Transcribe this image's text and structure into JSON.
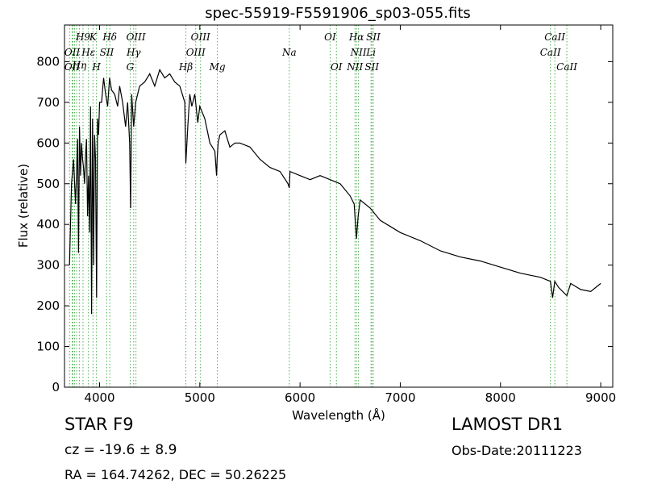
{
  "chart_data": {
    "type": "line",
    "title": "spec-55919-F5591906_sp03-055.fits",
    "xlabel": "Wavelength (Å)",
    "ylabel": "Flux (relative)",
    "xlim": [
      3650,
      9120
    ],
    "ylim": [
      0,
      890
    ],
    "xticks": [
      "4000",
      "5000",
      "6000",
      "7000",
      "8000",
      "9000"
    ],
    "yticks": [
      "0",
      "100",
      "200",
      "300",
      "400",
      "500",
      "600",
      "700",
      "800"
    ],
    "grid": false,
    "series": [
      {
        "color": "#000000",
        "x": [
          3700,
          3720,
          3740,
          3760,
          3780,
          3790,
          3800,
          3810,
          3820,
          3830,
          3840,
          3850,
          3860,
          3870,
          3880,
          3890,
          3900,
          3910,
          3920,
          3930,
          3940,
          3950,
          3960,
          3970,
          3980,
          3990,
          4000,
          4020,
          4040,
          4060,
          4080,
          4100,
          4120,
          4150,
          4180,
          4200,
          4230,
          4260,
          4280,
          4300,
          4310,
          4320,
          4340,
          4360,
          4380,
          4400,
          4450,
          4500,
          4550,
          4600,
          4650,
          4700,
          4750,
          4800,
          4850,
          4861,
          4880,
          4900,
          4920,
          4950,
          4980,
          5000,
          5050,
          5100,
          5150,
          5167,
          5173,
          5183,
          5200,
          5250,
          5300,
          5350,
          5400,
          5500,
          5600,
          5700,
          5800,
          5880,
          5893,
          5900,
          6000,
          6100,
          6200,
          6300,
          6400,
          6500,
          6540,
          6563,
          6580,
          6600,
          6700,
          6800,
          6900,
          7000,
          7200,
          7400,
          7600,
          7800,
          8000,
          8200,
          8400,
          8498,
          8520,
          8542,
          8580,
          8662,
          8700,
          8800,
          8900,
          9000
        ],
        "y": [
          300,
          500,
          560,
          450,
          610,
          330,
          640,
          520,
          600,
          560,
          540,
          500,
          570,
          610,
          420,
          520,
          380,
          690,
          180,
          660,
          300,
          620,
          560,
          220,
          660,
          620,
          700,
          700,
          760,
          720,
          690,
          760,
          730,
          720,
          690,
          740,
          700,
          640,
          700,
          600,
          440,
          720,
          640,
          700,
          720,
          740,
          750,
          770,
          740,
          780,
          760,
          770,
          750,
          740,
          700,
          550,
          640,
          720,
          690,
          720,
          650,
          690,
          660,
          600,
          580,
          520,
          560,
          600,
          620,
          630,
          590,
          600,
          600,
          590,
          560,
          540,
          530,
          500,
          490,
          530,
          520,
          510,
          520,
          510,
          500,
          470,
          450,
          365,
          420,
          460,
          440,
          410,
          395,
          380,
          360,
          335,
          320,
          310,
          295,
          280,
          270,
          260,
          220,
          260,
          245,
          225,
          255,
          240,
          235,
          255
        ]
      }
    ],
    "line_labels": [
      {
        "text": "H9",
        "x": 3835,
        "row": 1
      },
      {
        "text": "K",
        "x": 3934,
        "row": 1
      },
      {
        "text": "Hδ",
        "x": 4102,
        "row": 1
      },
      {
        "text": "OIII",
        "x": 4363,
        "row": 1
      },
      {
        "text": "OIII",
        "x": 5007,
        "row": 1
      },
      {
        "text": "OI",
        "x": 6300,
        "row": 1
      },
      {
        "text": "Hα",
        "x": 6563,
        "row": 1
      },
      {
        "text": "SII",
        "x": 6731,
        "row": 1
      },
      {
        "text": "CaII",
        "x": 8542,
        "row": 1
      },
      {
        "text": "OII",
        "x": 3727,
        "row": 2
      },
      {
        "text": "Hε",
        "x": 3889,
        "row": 2
      },
      {
        "text": "SII",
        "x": 4072,
        "row": 2
      },
      {
        "text": "Hγ",
        "x": 4340,
        "row": 2
      },
      {
        "text": "OIII",
        "x": 4959,
        "row": 2
      },
      {
        "text": "Na",
        "x": 5893,
        "row": 2
      },
      {
        "text": "NII",
        "x": 6583,
        "row": 2
      },
      {
        "text": "Li",
        "x": 6708,
        "row": 2
      },
      {
        "text": "CaII",
        "x": 8498,
        "row": 2
      },
      {
        "text": "Hη",
        "x": 3798,
        "row": 3
      },
      {
        "text": "OII",
        "x": 3727,
        "row": 4
      },
      {
        "text": "H",
        "x": 3969,
        "row": 4
      },
      {
        "text": "G",
        "x": 4305,
        "row": 4
      },
      {
        "text": "Hβ",
        "x": 4861,
        "row": 4
      },
      {
        "text": "Mg",
        "x": 5175,
        "row": 4
      },
      {
        "text": "OI",
        "x": 6363,
        "row": 4
      },
      {
        "text": "NII",
        "x": 6548,
        "row": 4
      },
      {
        "text": "SII",
        "x": 6717,
        "row": 4
      },
      {
        "text": "CaII",
        "x": 8662,
        "row": 4
      }
    ],
    "line_markers": [
      3700,
      3727,
      3734,
      3750,
      3771,
      3798,
      3835,
      3889,
      3934,
      3969,
      4072,
      4102,
      4305,
      4340,
      4363,
      4861,
      4959,
      5007,
      5175,
      5893,
      6300,
      6363,
      6548,
      6563,
      6583,
      6708,
      6717,
      6731,
      8498,
      8542,
      8662
    ]
  },
  "footer": {
    "class": "STAR   F9",
    "survey": "LAMOST DR1",
    "cz": "cz = -19.6 ± 8.9",
    "obs_date": "Obs-Date:20111223",
    "radec": "RA = 164.74262, DEC = 50.26225"
  }
}
